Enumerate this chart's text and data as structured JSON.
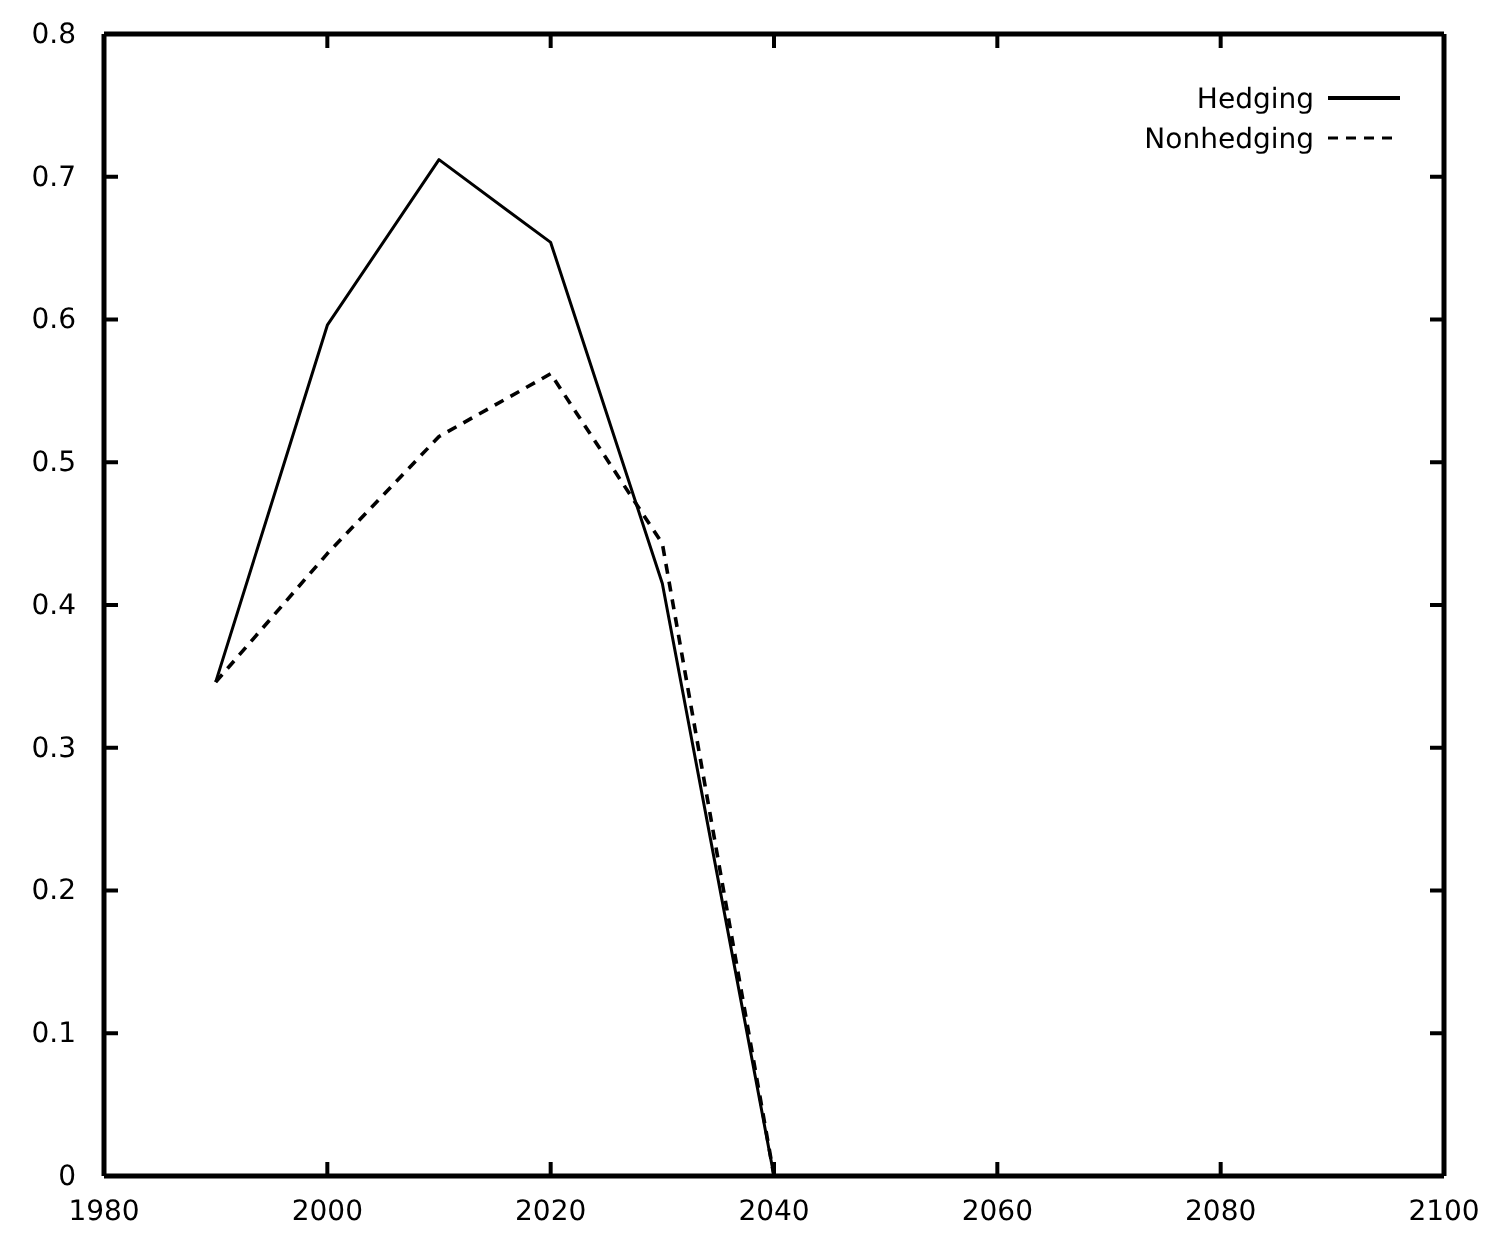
{
  "chart_data": {
    "type": "line",
    "x": [
      1990,
      2000,
      2010,
      2020,
      2030,
      2040
    ],
    "series": [
      {
        "name": "Hedging",
        "color": "#000000",
        "values": [
          0.346,
          0.596,
          0.712,
          0.654,
          0.415,
          0
        ],
        "line_style": "solid"
      },
      {
        "name": "Nonhedging",
        "color": "#000000",
        "values": [
          0.346,
          0.436,
          0.518,
          0.562,
          0.443,
          0
        ],
        "line_style": "dashed"
      }
    ],
    "xlim": [
      1980,
      2100
    ],
    "xticks": [
      1980,
      2000,
      2020,
      2040,
      2060,
      2080,
      2100
    ],
    "ylim": [
      0,
      0.8
    ],
    "yticks": [
      0,
      0.1,
      0.2,
      0.3,
      0.4,
      0.5,
      0.6,
      0.7,
      0.8
    ],
    "grid": false,
    "legend": "top right",
    "marker": "none"
  }
}
